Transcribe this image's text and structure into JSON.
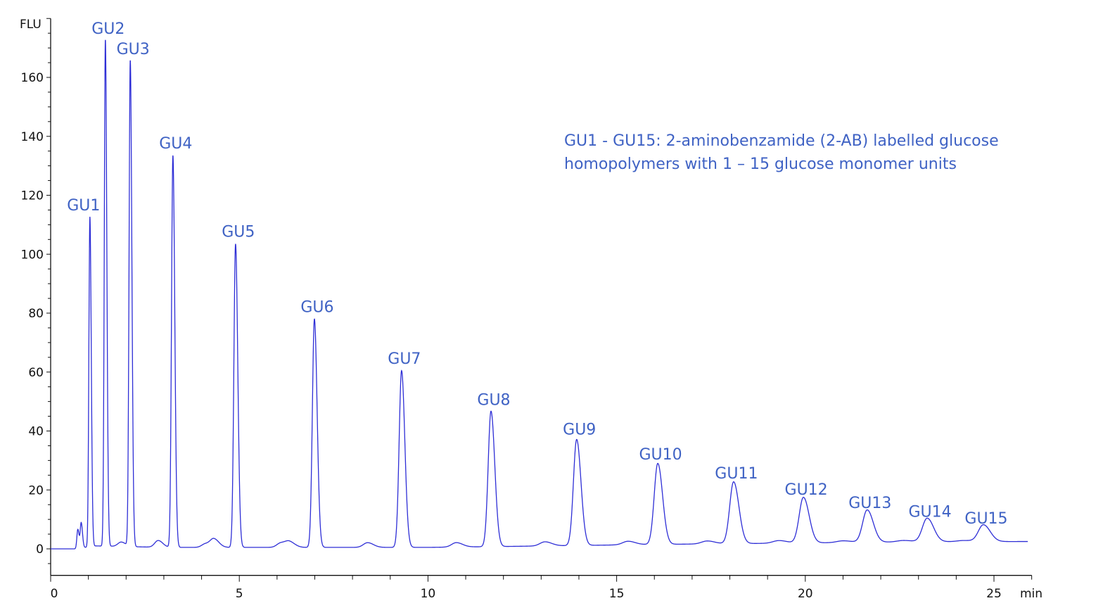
{
  "chart_data": {
    "type": "line",
    "title": "",
    "xlabel": "min",
    "ylabel": "FLU",
    "xlim": [
      0,
      26
    ],
    "ylim": [
      -9,
      180
    ],
    "x_ticks": [
      0,
      5,
      10,
      15,
      20,
      25
    ],
    "y_ticks": [
      0,
      20,
      40,
      60,
      80,
      100,
      120,
      140,
      160
    ],
    "grid": false,
    "legend": "none",
    "line_color": "#2e2ed6",
    "label_color": "#3f62c4",
    "annotation": [
      "GU1 - GU15: 2-aminobenzamide (2-AB) labelled glucose",
      "homopolymers with 1 – 15 glucose monomer units"
    ],
    "peaks": [
      {
        "label": "GU1",
        "time": 1.04,
        "height": 112
      },
      {
        "label": "GU2",
        "time": 1.45,
        "height": 172
      },
      {
        "label": "GU3",
        "time": 2.11,
        "height": 165
      },
      {
        "label": "GU4",
        "time": 3.24,
        "height": 133
      },
      {
        "label": "GU5",
        "time": 4.9,
        "height": 103
      },
      {
        "label": "GU6",
        "time": 6.99,
        "height": 77.5
      },
      {
        "label": "GU7",
        "time": 9.3,
        "height": 60
      },
      {
        "label": "GU8",
        "time": 11.67,
        "height": 46
      },
      {
        "label": "GU9",
        "time": 13.94,
        "height": 36
      },
      {
        "label": "GU10",
        "time": 16.09,
        "height": 27.5
      },
      {
        "label": "GU11",
        "time": 18.1,
        "height": 21
      },
      {
        "label": "GU12",
        "time": 19.95,
        "height": 15.5
      },
      {
        "label": "GU13",
        "time": 21.64,
        "height": 11
      },
      {
        "label": "GU14",
        "time": 23.23,
        "height": 8
      },
      {
        "label": "GU15",
        "time": 24.72,
        "height": 5.7
      }
    ],
    "minor_peaks": [
      {
        "time": 0.72,
        "height": 6.5
      },
      {
        "time": 0.81,
        "height": 8.5
      },
      {
        "time": 1.87,
        "height": 1.5
      },
      {
        "time": 2.85,
        "height": 2.3
      },
      {
        "time": 4.1,
        "height": 1.2
      },
      {
        "time": 4.33,
        "height": 2.8
      },
      {
        "time": 6.1,
        "height": 1.5
      },
      {
        "time": 6.33,
        "height": 1.8
      },
      {
        "time": 8.4,
        "height": 1.6
      },
      {
        "time": 10.75,
        "height": 1.5
      },
      {
        "time": 13.1,
        "height": 1.4
      },
      {
        "time": 15.3,
        "height": 1.2
      },
      {
        "time": 17.4,
        "height": 1.0
      },
      {
        "time": 19.3,
        "height": 0.9
      },
      {
        "time": 21.0,
        "height": 0.6
      },
      {
        "time": 22.6,
        "height": 0.5
      },
      {
        "time": 24.2,
        "height": 0.4
      }
    ],
    "baseline": [
      [
        0,
        0
      ],
      [
        0.65,
        0
      ],
      [
        1.2,
        1
      ],
      [
        3,
        0.5
      ],
      [
        10,
        0.5
      ],
      [
        12,
        0.8
      ],
      [
        16,
        1.5
      ],
      [
        20,
        2
      ],
      [
        23,
        2.4
      ],
      [
        26,
        2.5
      ]
    ]
  }
}
